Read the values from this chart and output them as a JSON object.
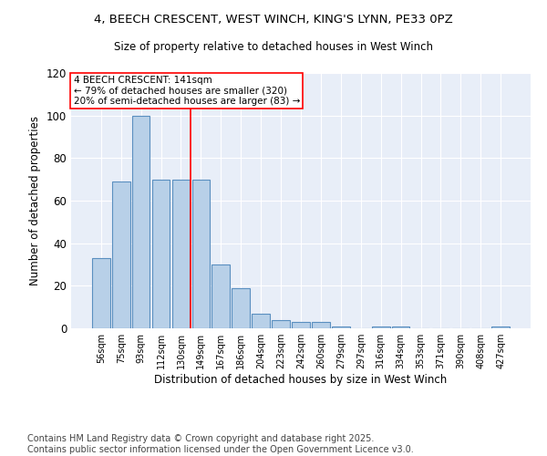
{
  "title_line1": "4, BEECH CRESCENT, WEST WINCH, KING'S LYNN, PE33 0PZ",
  "title_line2": "Size of property relative to detached houses in West Winch",
  "xlabel": "Distribution of detached houses by size in West Winch",
  "ylabel": "Number of detached properties",
  "categories": [
    "56sqm",
    "75sqm",
    "93sqm",
    "112sqm",
    "130sqm",
    "149sqm",
    "167sqm",
    "186sqm",
    "204sqm",
    "223sqm",
    "242sqm",
    "260sqm",
    "279sqm",
    "297sqm",
    "316sqm",
    "334sqm",
    "353sqm",
    "371sqm",
    "390sqm",
    "408sqm",
    "427sqm"
  ],
  "values": [
    33,
    69,
    100,
    70,
    70,
    70,
    30,
    19,
    7,
    4,
    3,
    3,
    1,
    0,
    1,
    1,
    0,
    0,
    0,
    0,
    1
  ],
  "bar_color": "#b8d0e8",
  "bar_edge_color": "#5a8fc0",
  "annotation_text": "4 BEECH CRESCENT: 141sqm\n← 79% of detached houses are smaller (320)\n20% of semi-detached houses are larger (83) →",
  "annotation_box_color": "white",
  "annotation_box_edge_color": "red",
  "ylim": [
    0,
    120
  ],
  "yticks": [
    0,
    20,
    40,
    60,
    80,
    100,
    120
  ],
  "background_color": "#e8eef8",
  "footer_line1": "Contains HM Land Registry data © Crown copyright and database right 2025.",
  "footer_line2": "Contains public sector information licensed under the Open Government Licence v3.0.",
  "footer_fontsize": 7.0,
  "title_fontsize": 9.5,
  "subtitle_fontsize": 8.5
}
